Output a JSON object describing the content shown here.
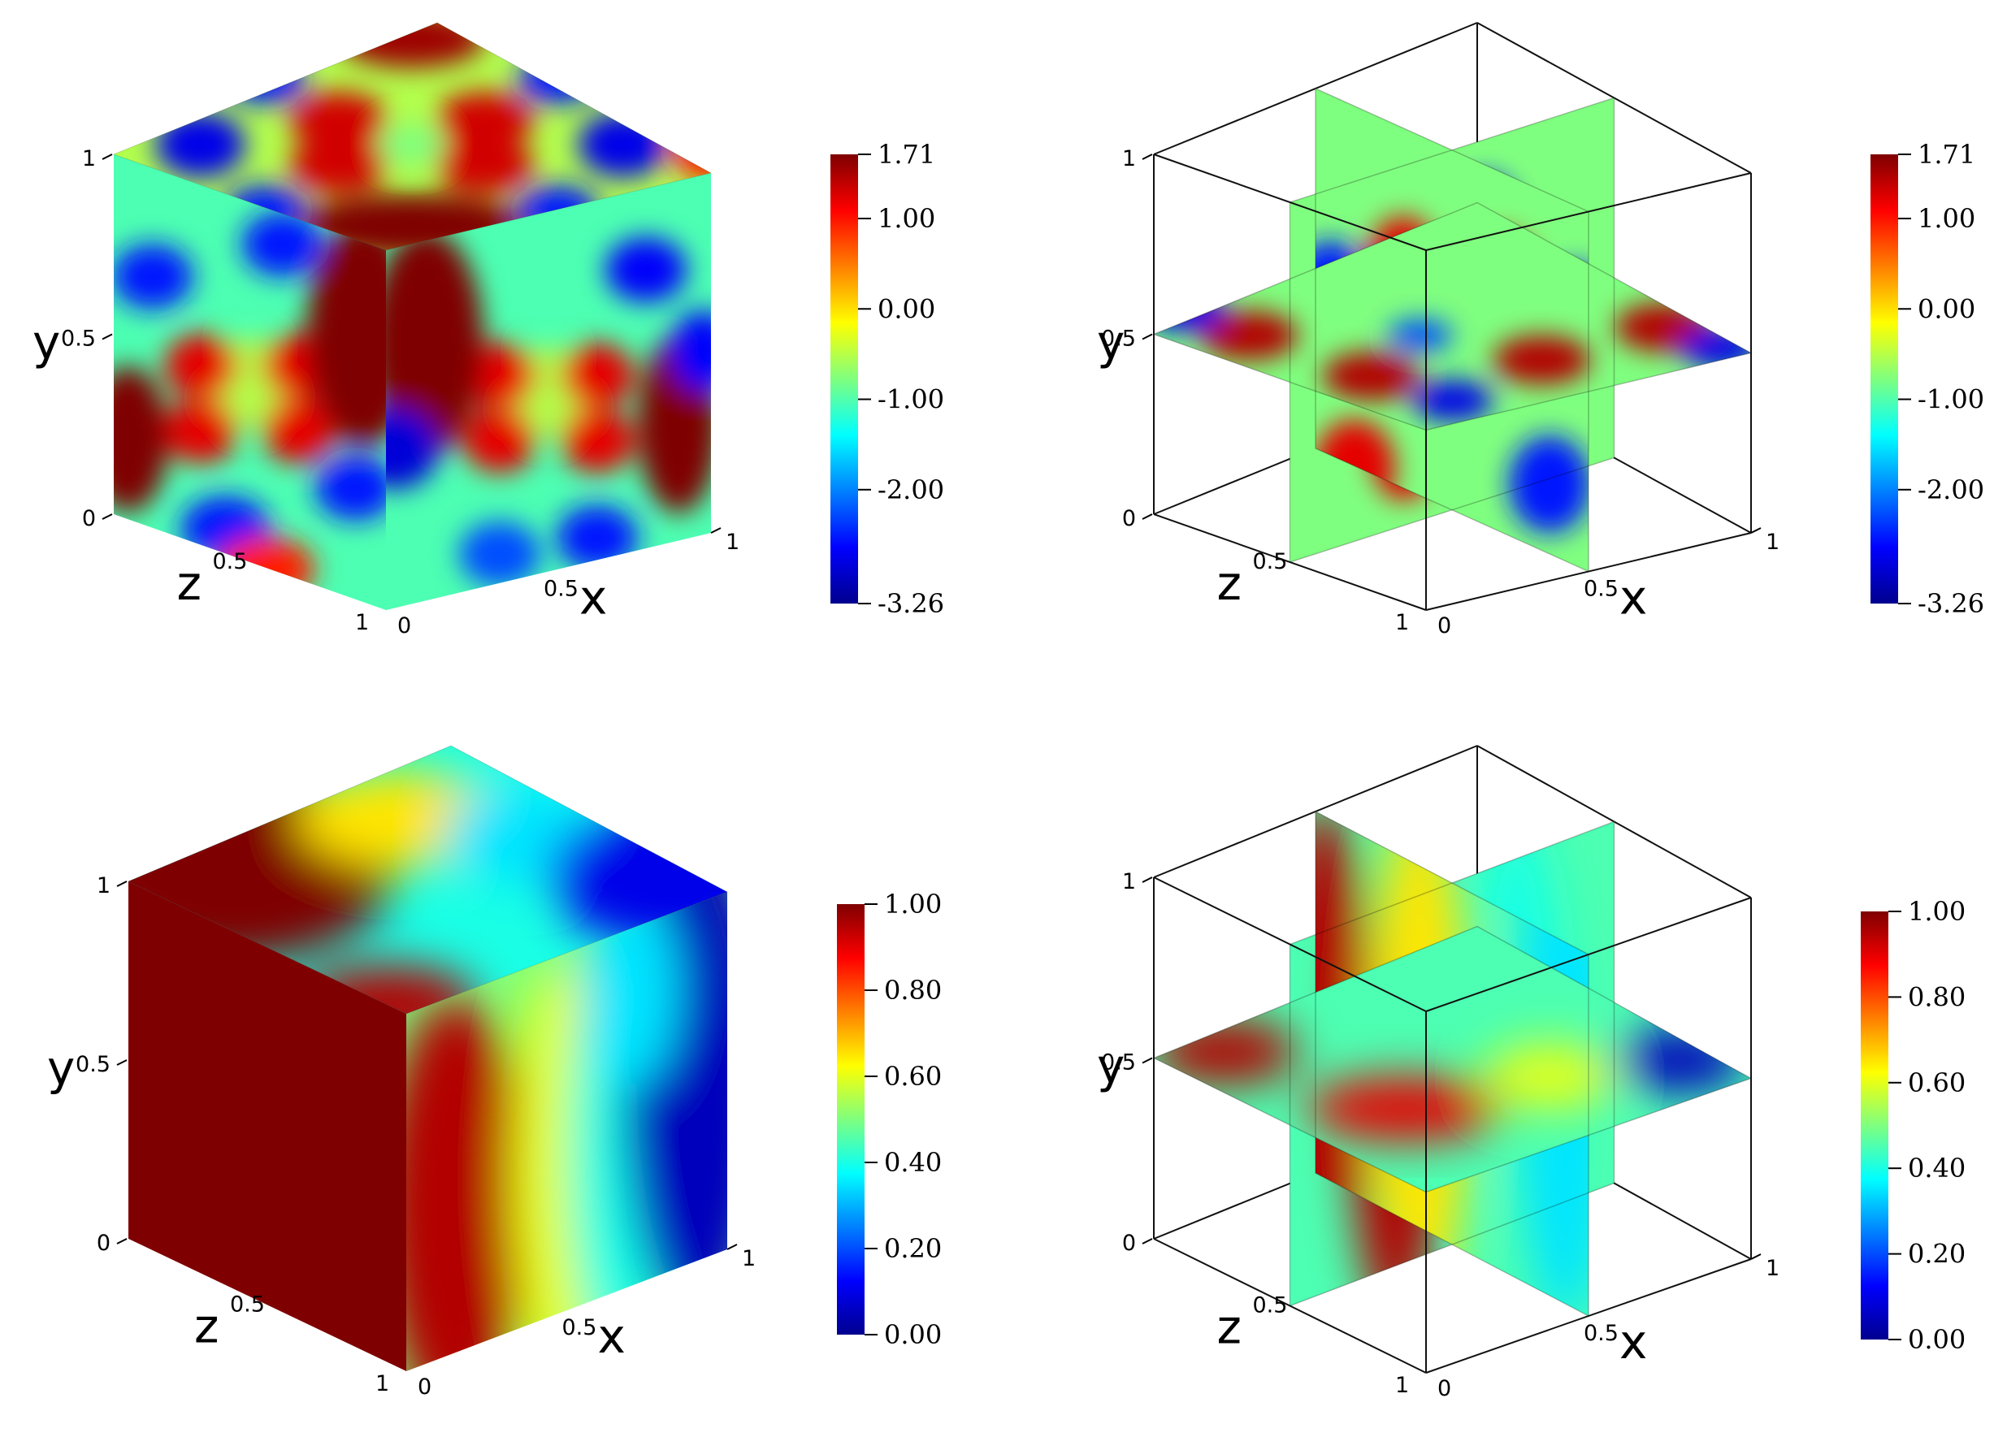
{
  "chart_data": [
    {
      "type": "heatmap",
      "view": "cube-surface",
      "axes": {
        "x": {
          "label": "x",
          "ticks": [
            "0",
            "0.5",
            "1"
          ]
        },
        "y": {
          "label": "y",
          "ticks": [
            "0",
            "0.5",
            "1"
          ]
        },
        "z": {
          "label": "z",
          "ticks": [
            "1",
            "0.5"
          ]
        }
      },
      "colorbar": {
        "min": -3.26,
        "max": 1.71,
        "ticks": [
          "1.71",
          "1.00",
          "0.00",
          "-1.00",
          "-2.00",
          "-3.26"
        ],
        "colormap": "jet"
      }
    },
    {
      "type": "heatmap",
      "view": "orthogonal-slices",
      "axes": {
        "x": {
          "label": "x",
          "ticks": [
            "0",
            "0.5",
            "1"
          ]
        },
        "y": {
          "label": "y",
          "ticks": [
            "0",
            "0.5",
            "1"
          ]
        },
        "z": {
          "label": "z",
          "ticks": [
            "1",
            "0.5"
          ]
        }
      },
      "colorbar": {
        "min": -3.26,
        "max": 1.71,
        "ticks": [
          "1.71",
          "1.00",
          "0.00",
          "-1.00",
          "-2.00",
          "-3.26"
        ],
        "colormap": "jet"
      }
    },
    {
      "type": "heatmap",
      "view": "cube-surface",
      "axes": {
        "x": {
          "label": "x",
          "ticks": [
            "0",
            "0.5",
            "1"
          ]
        },
        "y": {
          "label": "y",
          "ticks": [
            "0",
            "0.5",
            "1"
          ]
        },
        "z": {
          "label": "z",
          "ticks": [
            "1",
            "0.5"
          ]
        }
      },
      "colorbar": {
        "min": 0.0,
        "max": 1.0,
        "ticks": [
          "1.00",
          "0.80",
          "0.60",
          "0.40",
          "0.20",
          "0.00"
        ],
        "colormap": "jet"
      }
    },
    {
      "type": "heatmap",
      "view": "orthogonal-slices",
      "axes": {
        "x": {
          "label": "x",
          "ticks": [
            "0",
            "0.5",
            "1"
          ]
        },
        "y": {
          "label": "y",
          "ticks": [
            "0",
            "0.5",
            "1"
          ]
        },
        "z": {
          "label": "z",
          "ticks": [
            "1",
            "0.5"
          ]
        }
      },
      "colorbar": {
        "min": 0.0,
        "max": 1.0,
        "ticks": [
          "1.00",
          "0.80",
          "0.60",
          "0.40",
          "0.20",
          "0.00"
        ],
        "colormap": "jet"
      }
    }
  ]
}
